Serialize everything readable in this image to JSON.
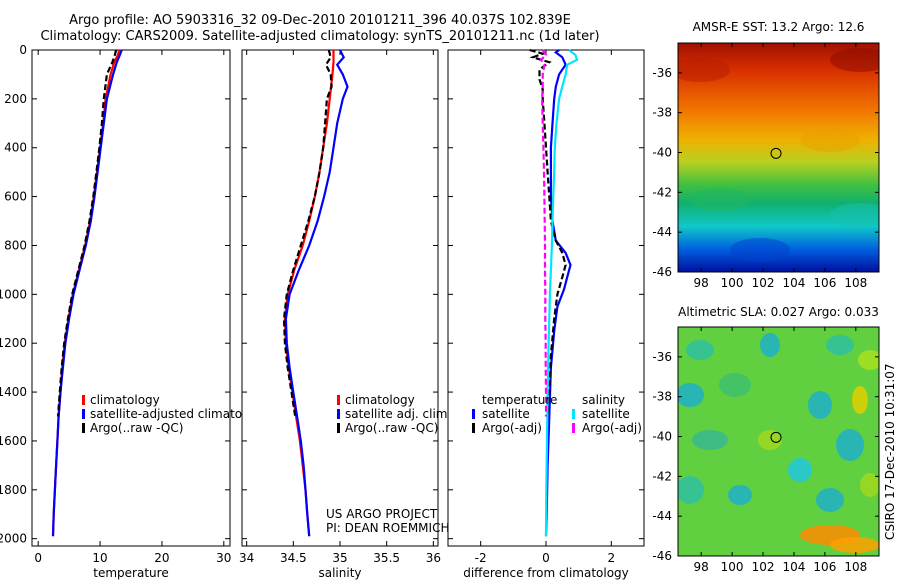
{
  "header": {
    "line1": "Argo profile: AO 5903316_32 09-Dec-2010 20101211_396 40.037S 102.839E",
    "line2": "Climatology: CARS2009. Satellite-adjusted climatology: synTS_20101211.nc (1d later)"
  },
  "colors": {
    "red": "#ff0000",
    "blue": "#0000ff",
    "black": "#000000",
    "cyan": "#00e5ff",
    "magenta": "#ff00ff"
  },
  "chart_data": [
    {
      "type": "line",
      "xlabel": "temperature",
      "xlim": [
        -1,
        31
      ],
      "xticks": [
        0,
        10,
        20,
        30
      ],
      "ylim": [
        2030,
        0
      ],
      "yticks": [
        0,
        200,
        400,
        600,
        800,
        1000,
        1200,
        1400,
        1600,
        1800,
        2000
      ],
      "legend": [
        "climatology",
        "satellite-adjusted climatolog",
        "Argo(..raw -QC)"
      ],
      "series": [
        {
          "name": "climatology",
          "color": "#ff0000",
          "dash": "",
          "y": [
            0,
            20,
            50,
            100,
            200,
            300,
            400,
            500,
            600,
            700,
            800,
            900,
            1000,
            1100,
            1200,
            1300,
            1400,
            1500,
            1600,
            1700,
            1800,
            1900,
            1990
          ],
          "x": [
            13.1,
            12.9,
            12.3,
            11.7,
            10.9,
            10.5,
            10.0,
            9.5,
            9.0,
            8.4,
            7.6,
            6.6,
            5.6,
            4.9,
            4.3,
            3.9,
            3.6,
            3.3,
            3.1,
            2.9,
            2.7,
            2.5,
            2.4
          ]
        },
        {
          "name": "satellite-adjusted climatology",
          "color": "#0000ff",
          "dash": "",
          "y": [
            0,
            20,
            50,
            100,
            200,
            300,
            400,
            500,
            600,
            700,
            800,
            900,
            1000,
            1100,
            1200,
            1300,
            1400,
            1500,
            1600,
            1700,
            1800,
            1900,
            1990
          ],
          "x": [
            13.5,
            13.2,
            12.7,
            12.1,
            11.1,
            10.6,
            10.1,
            9.6,
            9.1,
            8.5,
            7.7,
            6.7,
            5.7,
            5.0,
            4.4,
            4.0,
            3.6,
            3.3,
            3.1,
            2.9,
            2.7,
            2.5,
            2.4
          ]
        },
        {
          "name": "Argo(..raw -QC)",
          "color": "#000000",
          "dash": "6,3",
          "y": [
            0,
            20,
            50,
            100,
            200,
            300,
            400,
            500,
            600,
            700,
            800,
            900,
            1000,
            1100,
            1200,
            1300,
            1400,
            1500
          ],
          "x": [
            12.6,
            12.4,
            12.0,
            11.1,
            10.6,
            10.3,
            9.9,
            9.4,
            8.9,
            8.3,
            7.5,
            6.5,
            5.5,
            4.8,
            4.2,
            3.8,
            3.5,
            3.2
          ]
        }
      ]
    },
    {
      "type": "line",
      "xlabel": "salinity",
      "xlim": [
        33.95,
        36.05
      ],
      "xticks": [
        34,
        34.5,
        35,
        35.5,
        36
      ],
      "ylim": [
        2030,
        0
      ],
      "legend": [
        "climatology",
        "satellite adj. clim.",
        "Argo(..raw -QC)"
      ],
      "annotation": [
        "US ARGO PROJECT",
        "PI: DEAN ROEMMICH"
      ],
      "series": [
        {
          "name": "climatology",
          "color": "#ff0000",
          "dash": "",
          "y": [
            0,
            50,
            100,
            200,
            300,
            400,
            500,
            600,
            700,
            800,
            900,
            1000,
            1100,
            1200,
            1300,
            1400,
            1500,
            1600,
            1700,
            1800,
            1900,
            1990
          ],
          "x": [
            34.93,
            34.93,
            34.92,
            34.89,
            34.86,
            34.82,
            34.78,
            34.73,
            34.67,
            34.6,
            34.51,
            34.44,
            34.41,
            34.42,
            34.45,
            34.49,
            34.53,
            34.57,
            34.6,
            34.63,
            34.65,
            34.67
          ]
        },
        {
          "name": "satellite adj. clim.",
          "color": "#0000ff",
          "dash": "",
          "y": [
            0,
            30,
            60,
            100,
            150,
            200,
            300,
            400,
            500,
            600,
            700,
            800,
            900,
            1000,
            1100,
            1200,
            1300,
            1400,
            1500,
            1600,
            1700,
            1800,
            1900,
            1990
          ],
          "x": [
            35.0,
            35.04,
            34.97,
            35.03,
            35.08,
            35.03,
            34.97,
            34.93,
            34.89,
            34.83,
            34.76,
            34.67,
            34.56,
            34.46,
            34.42,
            34.43,
            34.46,
            34.5,
            34.54,
            34.58,
            34.61,
            34.63,
            34.65,
            34.67
          ]
        },
        {
          "name": "Argo(..raw -QC)",
          "color": "#000000",
          "dash": "6,3",
          "y": [
            0,
            30,
            60,
            100,
            150,
            200,
            300,
            400,
            500,
            600,
            700,
            800,
            900,
            1000,
            1100,
            1200,
            1300,
            1400,
            1500
          ],
          "x": [
            34.88,
            34.9,
            34.85,
            34.9,
            34.91,
            34.86,
            34.84,
            34.82,
            34.78,
            34.73,
            34.66,
            34.58,
            34.5,
            34.43,
            34.4,
            34.41,
            34.44,
            34.48,
            34.52
          ]
        }
      ]
    },
    {
      "type": "line",
      "xlabel": "difference from climatology",
      "xlim": [
        -3,
        3
      ],
      "xticks": [
        -2,
        0,
        2
      ],
      "ylim": [
        2030,
        0
      ],
      "legend_groups": [
        {
          "title": "temperature",
          "items": [
            {
              "label": "satellite",
              "color": "#0000ff"
            },
            {
              "label": "Argo(-adj)",
              "color": "#000000"
            }
          ]
        },
        {
          "title": "salinity",
          "items": [
            {
              "label": "satellite",
              "color": "#00e5ff"
            },
            {
              "label": "Argo(-adj)",
              "color": "#ff00ff"
            }
          ]
        }
      ],
      "series": [
        {
          "name": "temperature satellite",
          "color": "#0000ff",
          "dash": "",
          "y": [
            0,
            10,
            30,
            60,
            100,
            150,
            200,
            300,
            400,
            500,
            600,
            700,
            780,
            830,
            880,
            930,
            980,
            1050,
            1150,
            1300,
            1500,
            1700,
            1900,
            1990
          ],
          "x": [
            0.4,
            0.3,
            0.5,
            0.6,
            0.4,
            0.3,
            0.25,
            0.2,
            0.15,
            0.15,
            0.15,
            0.2,
            0.3,
            0.6,
            0.75,
            0.65,
            0.55,
            0.35,
            0.25,
            0.15,
            0.1,
            0.05,
            0.02,
            0.0
          ]
        },
        {
          "name": "temperature Argo(-adj)",
          "color": "#000000",
          "dash": "6,3",
          "y": [
            0,
            15,
            30,
            50,
            80,
            120,
            160,
            200,
            300,
            400,
            500,
            600,
            700,
            780,
            830,
            880,
            930,
            1000,
            1100,
            1250,
            1400,
            1500
          ],
          "x": [
            -0.5,
            -0.1,
            -0.4,
            0.1,
            -0.2,
            -0.2,
            -0.1,
            -0.1,
            -0.05,
            0.0,
            0.05,
            0.1,
            0.15,
            0.3,
            0.5,
            0.6,
            0.5,
            0.35,
            0.25,
            0.15,
            0.1,
            0.05
          ]
        },
        {
          "name": "salinity satellite",
          "color": "#00e5ff",
          "dash": "",
          "y": [
            0,
            20,
            40,
            60,
            100,
            150,
            200,
            300,
            400,
            500,
            600,
            700,
            800,
            900,
            1000,
            1100,
            1200,
            1400,
            1600,
            1800,
            1990
          ],
          "x": [
            0.7,
            0.9,
            0.95,
            0.65,
            0.6,
            0.5,
            0.4,
            0.32,
            0.27,
            0.25,
            0.22,
            0.2,
            0.18,
            0.15,
            0.12,
            0.1,
            0.08,
            0.05,
            0.03,
            0.01,
            0.0
          ]
        },
        {
          "name": "salinity Argo(-adj)",
          "color": "#ff00ff",
          "dash": "6,3",
          "y": [
            0,
            20,
            40,
            60,
            100,
            150,
            200,
            300,
            400,
            500,
            600,
            700,
            800,
            900,
            1000,
            1100,
            1200,
            1300,
            1400,
            1500
          ],
          "x": [
            -0.1,
            0.0,
            -0.15,
            -0.05,
            -0.1,
            -0.1,
            -0.12,
            -0.1,
            -0.08,
            -0.06,
            -0.05,
            -0.04,
            -0.03,
            -0.03,
            -0.02,
            -0.02,
            -0.01,
            -0.01,
            0.0,
            0.0
          ]
        }
      ]
    },
    {
      "type": "heatmap",
      "title": "AMSR-E SST: 13.2 Argo: 12.6",
      "xlim": [
        96.5,
        109.5
      ],
      "xticks": [
        98,
        100,
        102,
        104,
        106,
        108
      ],
      "ylim": [
        -46,
        -34.5
      ],
      "yticks": [
        -36,
        -38,
        -40,
        -42,
        -44,
        -46
      ],
      "marker": {
        "x": 102.84,
        "y": -40.04
      }
    },
    {
      "type": "heatmap",
      "title": "Altimetric SLA: 0.027 Argo: 0.033",
      "xlim": [
        96.5,
        109.5
      ],
      "xticks": [
        98,
        100,
        102,
        104,
        106,
        108
      ],
      "ylim": [
        -46,
        -34.5
      ],
      "yticks": [
        -36,
        -38,
        -40,
        -42,
        -44,
        -46
      ],
      "marker": {
        "x": 102.84,
        "y": -40.04
      }
    }
  ],
  "footer": {
    "stamp": "CSIRO 17-Dec-2010 10:31:07"
  }
}
